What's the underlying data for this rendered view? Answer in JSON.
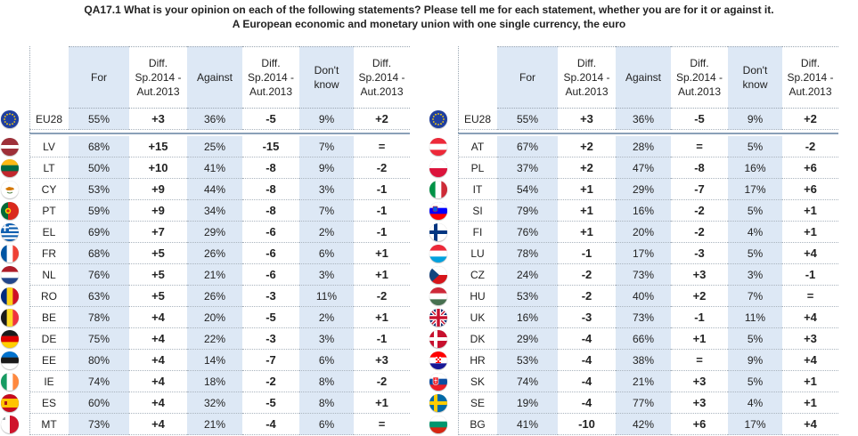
{
  "title": {
    "line1": "QA17.1 What is your opinion on each of the following statements? Please tell me for each statement, whether you are for it or against it.",
    "line2": "A European economic and monetary union with one single currency, the euro"
  },
  "headers": [
    "For",
    "Diff.\nSp.2014 -\nAut.2013",
    "Against",
    "Diff.\nSp.2014 -\nAut.2013",
    "Don't\nknow",
    "Diff.\nSp.2014 -\nAut.2013"
  ],
  "left": [
    {
      "country": "EU28",
      "flag": "eu",
      "for": "55%",
      "d1": "+3",
      "against": "36%",
      "d2": "-5",
      "dk": "9%",
      "d3": "+2"
    },
    {
      "country": "LV",
      "flag": "lv",
      "for": "68%",
      "d1": "+15",
      "against": "25%",
      "d2": "-15",
      "dk": "7%",
      "d3": "="
    },
    {
      "country": "LT",
      "flag": "lt",
      "for": "50%",
      "d1": "+10",
      "against": "41%",
      "d2": "-8",
      "dk": "9%",
      "d3": "-2"
    },
    {
      "country": "CY",
      "flag": "cy",
      "for": "53%",
      "d1": "+9",
      "against": "44%",
      "d2": "-8",
      "dk": "3%",
      "d3": "-1"
    },
    {
      "country": "PT",
      "flag": "pt",
      "for": "59%",
      "d1": "+9",
      "against": "34%",
      "d2": "-8",
      "dk": "7%",
      "d3": "-1"
    },
    {
      "country": "EL",
      "flag": "el",
      "for": "69%",
      "d1": "+7",
      "against": "29%",
      "d2": "-6",
      "dk": "2%",
      "d3": "-1"
    },
    {
      "country": "FR",
      "flag": "fr",
      "for": "68%",
      "d1": "+5",
      "against": "26%",
      "d2": "-6",
      "dk": "6%",
      "d3": "+1"
    },
    {
      "country": "NL",
      "flag": "nl",
      "for": "76%",
      "d1": "+5",
      "against": "21%",
      "d2": "-6",
      "dk": "3%",
      "d3": "+1"
    },
    {
      "country": "RO",
      "flag": "ro",
      "for": "63%",
      "d1": "+5",
      "against": "26%",
      "d2": "-3",
      "dk": "11%",
      "d3": "-2"
    },
    {
      "country": "BE",
      "flag": "be",
      "for": "78%",
      "d1": "+4",
      "against": "20%",
      "d2": "-5",
      "dk": "2%",
      "d3": "+1"
    },
    {
      "country": "DE",
      "flag": "de",
      "for": "75%",
      "d1": "+4",
      "against": "22%",
      "d2": "-3",
      "dk": "3%",
      "d3": "-1"
    },
    {
      "country": "EE",
      "flag": "ee",
      "for": "80%",
      "d1": "+4",
      "against": "14%",
      "d2": "-7",
      "dk": "6%",
      "d3": "+3"
    },
    {
      "country": "IE",
      "flag": "ie",
      "for": "74%",
      "d1": "+4",
      "against": "18%",
      "d2": "-2",
      "dk": "8%",
      "d3": "-2"
    },
    {
      "country": "ES",
      "flag": "es",
      "for": "60%",
      "d1": "+4",
      "against": "32%",
      "d2": "-5",
      "dk": "8%",
      "d3": "+1"
    },
    {
      "country": "MT",
      "flag": "mt",
      "for": "73%",
      "d1": "+4",
      "against": "21%",
      "d2": "-4",
      "dk": "6%",
      "d3": "="
    }
  ],
  "right": [
    {
      "country": "EU28",
      "flag": "eu",
      "for": "55%",
      "d1": "+3",
      "against": "36%",
      "d2": "-5",
      "dk": "9%",
      "d3": "+2"
    },
    {
      "country": "AT",
      "flag": "at",
      "for": "67%",
      "d1": "+2",
      "against": "28%",
      "d2": "=",
      "dk": "5%",
      "d3": "-2"
    },
    {
      "country": "PL",
      "flag": "pl",
      "for": "37%",
      "d1": "+2",
      "against": "47%",
      "d2": "-8",
      "dk": "16%",
      "d3": "+6"
    },
    {
      "country": "IT",
      "flag": "it",
      "for": "54%",
      "d1": "+1",
      "against": "29%",
      "d2": "-7",
      "dk": "17%",
      "d3": "+6"
    },
    {
      "country": "SI",
      "flag": "si",
      "for": "79%",
      "d1": "+1",
      "against": "16%",
      "d2": "-2",
      "dk": "5%",
      "d3": "+1"
    },
    {
      "country": "FI",
      "flag": "fi",
      "for": "76%",
      "d1": "+1",
      "against": "20%",
      "d2": "-2",
      "dk": "4%",
      "d3": "+1"
    },
    {
      "country": "LU",
      "flag": "lu",
      "for": "78%",
      "d1": "-1",
      "against": "17%",
      "d2": "-3",
      "dk": "5%",
      "d3": "+4"
    },
    {
      "country": "CZ",
      "flag": "cz",
      "for": "24%",
      "d1": "-2",
      "against": "73%",
      "d2": "+3",
      "dk": "3%",
      "d3": "-1"
    },
    {
      "country": "HU",
      "flag": "hu",
      "for": "53%",
      "d1": "-2",
      "against": "40%",
      "d2": "+2",
      "dk": "7%",
      "d3": "="
    },
    {
      "country": "UK",
      "flag": "uk",
      "for": "16%",
      "d1": "-3",
      "against": "73%",
      "d2": "-1",
      "dk": "11%",
      "d3": "+4"
    },
    {
      "country": "DK",
      "flag": "dk",
      "for": "29%",
      "d1": "-4",
      "against": "66%",
      "d2": "+1",
      "dk": "5%",
      "d3": "+3"
    },
    {
      "country": "HR",
      "flag": "hr",
      "for": "53%",
      "d1": "-4",
      "against": "38%",
      "d2": "=",
      "dk": "9%",
      "d3": "+4"
    },
    {
      "country": "SK",
      "flag": "sk",
      "for": "74%",
      "d1": "-4",
      "against": "21%",
      "d2": "+3",
      "dk": "5%",
      "d3": "+1"
    },
    {
      "country": "SE",
      "flag": "se",
      "for": "19%",
      "d1": "-4",
      "against": "77%",
      "d2": "+3",
      "dk": "4%",
      "d3": "+1"
    },
    {
      "country": "BG",
      "flag": "bg",
      "for": "41%",
      "d1": "-10",
      "against": "42%",
      "d2": "+6",
      "dk": "17%",
      "d3": "+4"
    }
  ],
  "colors": {
    "header_blue": "#dde8f5",
    "separator": "#8aa0b8",
    "eu_blue": "#1f3fa0",
    "eu_star": "#ffd200"
  }
}
